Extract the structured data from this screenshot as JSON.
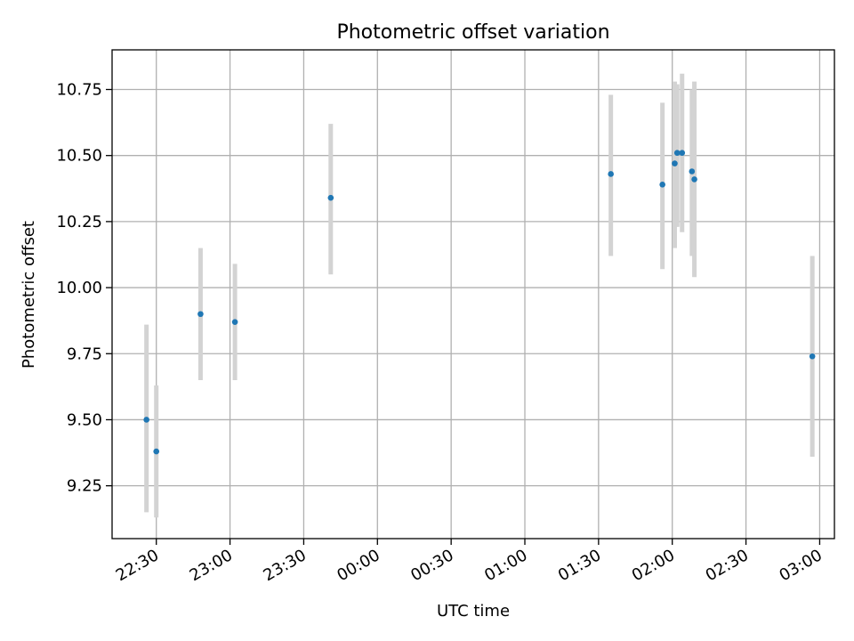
{
  "chart_data": {
    "type": "scatter",
    "title": "Photometric offset variation",
    "xlabel": "UTC time",
    "ylabel": "Photometric offset",
    "x_axis": {
      "kind": "time",
      "start": "22:30",
      "ticks": [
        "22:30",
        "23:00",
        "23:30",
        "00:00",
        "00:30",
        "01:00",
        "01:30",
        "02:00",
        "02:30",
        "03:00"
      ],
      "range": [
        "22:12",
        "03:06"
      ]
    },
    "y_axis": {
      "ticks": [
        "9.25",
        "9.50",
        "9.75",
        "10.00",
        "10.25",
        "10.50",
        "10.75"
      ],
      "range": [
        9.05,
        10.9
      ]
    },
    "grid": true,
    "colors": {
      "points": "#1f77b4",
      "errorbars": "#d3d3d3",
      "grid": "#b0b0b0"
    },
    "points": [
      {
        "x": "22:26",
        "y": 9.5,
        "ylow": 9.15,
        "yhigh": 9.86
      },
      {
        "x": "22:30",
        "y": 9.38,
        "ylow": 9.13,
        "yhigh": 9.63
      },
      {
        "x": "22:48",
        "y": 9.9,
        "ylow": 9.65,
        "yhigh": 10.15
      },
      {
        "x": "23:02",
        "y": 9.87,
        "ylow": 9.65,
        "yhigh": 10.09
      },
      {
        "x": "23:41",
        "y": 10.34,
        "ylow": 10.05,
        "yhigh": 10.62
      },
      {
        "x": "01:35",
        "y": 10.43,
        "ylow": 10.12,
        "yhigh": 10.73
      },
      {
        "x": "01:56",
        "y": 10.39,
        "ylow": 10.07,
        "yhigh": 10.7
      },
      {
        "x": "02:01",
        "y": 10.47,
        "ylow": 10.15,
        "yhigh": 10.78
      },
      {
        "x": "02:02",
        "y": 10.51,
        "ylow": 10.23,
        "yhigh": 10.77
      },
      {
        "x": "02:04",
        "y": 10.51,
        "ylow": 10.21,
        "yhigh": 10.81
      },
      {
        "x": "02:08",
        "y": 10.44,
        "ylow": 10.12,
        "yhigh": 10.75
      },
      {
        "x": "02:09",
        "y": 10.41,
        "ylow": 10.04,
        "yhigh": 10.78
      },
      {
        "x": "02:57",
        "y": 9.74,
        "ylow": 9.36,
        "yhigh": 10.12
      }
    ]
  }
}
